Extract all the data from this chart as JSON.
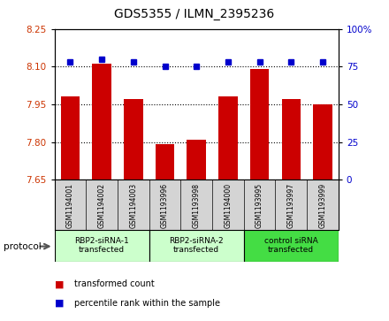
{
  "title": "GDS5355 / ILMN_2395236",
  "samples": [
    "GSM1194001",
    "GSM1194002",
    "GSM1194003",
    "GSM1193996",
    "GSM1193998",
    "GSM1194000",
    "GSM1193995",
    "GSM1193997",
    "GSM1193999"
  ],
  "red_values": [
    7.98,
    8.11,
    7.97,
    7.79,
    7.81,
    7.98,
    8.09,
    7.97,
    7.95
  ],
  "blue_values": [
    78,
    80,
    78,
    75,
    75,
    78,
    78,
    78,
    78
  ],
  "ylim_left": [
    7.65,
    8.25
  ],
  "ylim_right": [
    0,
    100
  ],
  "yticks_left": [
    7.65,
    7.8,
    7.95,
    8.1,
    8.25
  ],
  "yticks_right": [
    0,
    25,
    50,
    75,
    100
  ],
  "ytick_labels_right": [
    "0",
    "25",
    "50",
    "75",
    "100%"
  ],
  "groups": [
    {
      "label": "RBP2-siRNA-1\ntransfected",
      "indices": [
        0,
        1,
        2
      ],
      "color": "#ccffcc"
    },
    {
      "label": "RBP2-siRNA-2\ntransfected",
      "indices": [
        3,
        4,
        5
      ],
      "color": "#ccffcc"
    },
    {
      "label": "control siRNA\ntransfected",
      "indices": [
        6,
        7,
        8
      ],
      "color": "#44dd44"
    }
  ],
  "bar_color": "#cc0000",
  "dot_color": "#0000cc",
  "bar_width": 0.6,
  "baseline": 7.65,
  "legend_red_label": "transformed count",
  "legend_blue_label": "percentile rank within the sample",
  "protocol_label": "protocol",
  "sample_box_color": "#d4d4d4",
  "plot_bg": "#ffffff",
  "left_tick_color": "#cc3300",
  "right_tick_color": "#0000cc"
}
